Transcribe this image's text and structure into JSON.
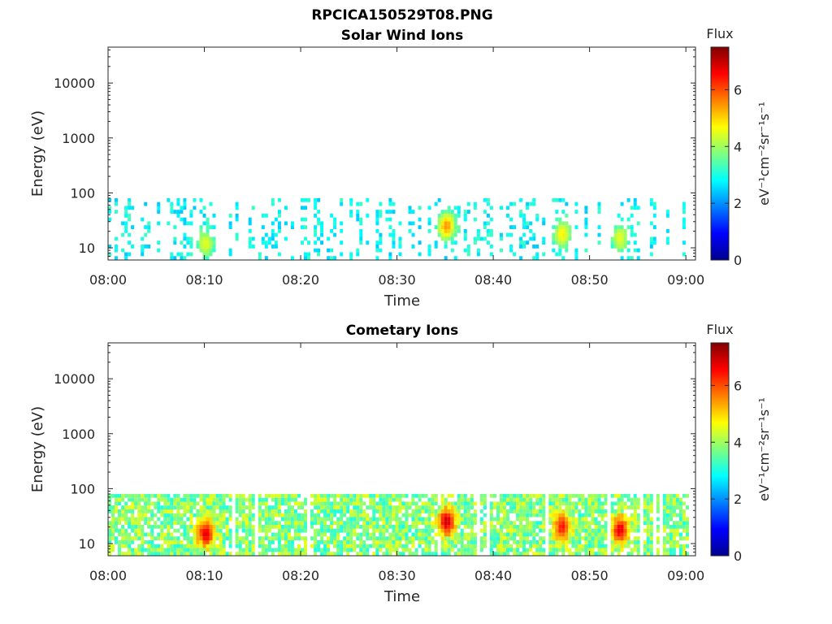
{
  "figure": {
    "title": "RPCICA150529T08.PNG"
  },
  "chart_data": [
    {
      "type": "heatmap",
      "title": "Solar Wind Ions",
      "xlabel": "Time",
      "ylabel": "Energy (eV)",
      "x_ticks": [
        "08:00",
        "08:10",
        "08:20",
        "08:30",
        "08:40",
        "08:50",
        "09:00"
      ],
      "xlim": [
        "08:00",
        "09:01"
      ],
      "y_scale": "log",
      "y_ticks": [
        10,
        100,
        1000,
        10000
      ],
      "ylim": [
        6,
        45000
      ],
      "colorbar": {
        "title": "Flux",
        "units": "eV⁻¹cm⁻²sr⁻¹s⁻¹",
        "ticks": [
          0,
          2,
          4,
          6
        ],
        "range": [
          0,
          7.5
        ],
        "colormap": "jet"
      },
      "data_energy_range": [
        6,
        80
      ],
      "peaks": [
        {
          "time": "08:10",
          "energy": 12,
          "flux": 4.5
        },
        {
          "time": "08:35",
          "energy": 25,
          "flux": 5.5
        },
        {
          "time": "08:47",
          "energy": 18,
          "flux": 4.8
        },
        {
          "time": "08:53",
          "energy": 15,
          "flux": 4.5
        }
      ]
    },
    {
      "type": "heatmap",
      "title": "Cometary Ions",
      "xlabel": "Time",
      "ylabel": "Energy (eV)",
      "x_ticks": [
        "08:00",
        "08:10",
        "08:20",
        "08:30",
        "08:40",
        "08:50",
        "09:00"
      ],
      "xlim": [
        "08:00",
        "09:01"
      ],
      "y_scale": "log",
      "y_ticks": [
        10,
        100,
        1000,
        10000
      ],
      "ylim": [
        6,
        45000
      ],
      "colorbar": {
        "title": "Flux",
        "units": "eV⁻¹cm⁻²sr⁻¹s⁻¹",
        "ticks": [
          0,
          2,
          4,
          6
        ],
        "range": [
          0,
          7.5
        ],
        "colormap": "jet"
      },
      "data_energy_range": [
        6,
        80
      ],
      "peaks": [
        {
          "time": "08:10",
          "energy": 15,
          "flux": 6.8
        },
        {
          "time": "08:35",
          "energy": 25,
          "flux": 7.0
        },
        {
          "time": "08:47",
          "energy": 20,
          "flux": 6.5
        },
        {
          "time": "08:53",
          "energy": 18,
          "flux": 6.8
        }
      ]
    }
  ]
}
